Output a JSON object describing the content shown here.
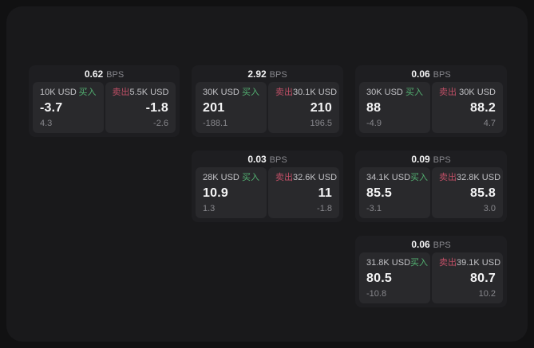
{
  "labels": {
    "bps": "BPS",
    "buy": "买入",
    "sell": "卖出"
  },
  "colors": {
    "buy_green": "#53b172",
    "sell_red": "#c04f66",
    "page_bg": "#111112",
    "surface_bg": "#19191b",
    "card_bg": "#1e1e21",
    "panel_bg": "#29292c"
  },
  "cards": [
    {
      "bps": "0.62",
      "buy": {
        "amount": "10K USD",
        "main": "-3.7",
        "sub": "4.3"
      },
      "sell": {
        "amount": "5.5K USD",
        "main": "-1.8",
        "sub": "-2.6"
      }
    },
    {
      "bps": "2.92",
      "buy": {
        "amount": "30K USD",
        "main": "201",
        "sub": "-188.1"
      },
      "sell": {
        "amount": "30.1K USD",
        "main": "210",
        "sub": "196.5"
      }
    },
    {
      "bps": "0.06",
      "buy": {
        "amount": "30K USD",
        "main": "88",
        "sub": "-4.9"
      },
      "sell": {
        "amount": "30K USD",
        "main": "88.2",
        "sub": "4.7"
      }
    },
    {
      "bps": "0.03",
      "buy": {
        "amount": "28K USD",
        "main": "10.9",
        "sub": "1.3"
      },
      "sell": {
        "amount": "32.6K USD",
        "main": "11",
        "sub": "-1.8"
      }
    },
    {
      "bps": "0.09",
      "buy": {
        "amount": "34.1K USD",
        "main": "85.5",
        "sub": "-3.1"
      },
      "sell": {
        "amount": "32.8K USD",
        "main": "85.8",
        "sub": "3.0"
      }
    },
    {
      "bps": "0.06",
      "buy": {
        "amount": "31.8K USD",
        "main": "80.5",
        "sub": "-10.8"
      },
      "sell": {
        "amount": "39.1K USD",
        "main": "80.7",
        "sub": "10.2"
      }
    }
  ]
}
